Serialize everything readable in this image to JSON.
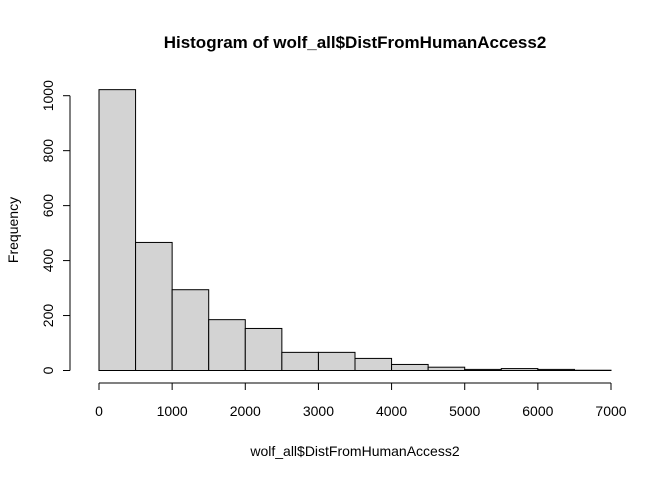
{
  "chart_data": {
    "type": "bar",
    "title": "Histogram of wolf_all$DistFromHumanAccess2",
    "xlabel": "wolf_all$DistFromHumanAccess2",
    "ylabel": "Frequency",
    "bin_width": 500,
    "bins": [
      {
        "start": 0,
        "end": 500,
        "count": 1022
      },
      {
        "start": 500,
        "end": 1000,
        "count": 466
      },
      {
        "start": 1000,
        "end": 1500,
        "count": 294
      },
      {
        "start": 1500,
        "end": 2000,
        "count": 185
      },
      {
        "start": 2000,
        "end": 2500,
        "count": 153
      },
      {
        "start": 2500,
        "end": 3000,
        "count": 66
      },
      {
        "start": 3000,
        "end": 3500,
        "count": 66
      },
      {
        "start": 3500,
        "end": 4000,
        "count": 44
      },
      {
        "start": 4000,
        "end": 4500,
        "count": 22
      },
      {
        "start": 4500,
        "end": 5000,
        "count": 12
      },
      {
        "start": 5000,
        "end": 5500,
        "count": 4
      },
      {
        "start": 5500,
        "end": 6000,
        "count": 7
      },
      {
        "start": 6000,
        "end": 6500,
        "count": 4
      },
      {
        "start": 6500,
        "end": 7000,
        "count": 1
      }
    ],
    "xlim": [
      0,
      7000
    ],
    "ylim": [
      0,
      1000
    ],
    "x_ticks": [
      0,
      1000,
      2000,
      3000,
      4000,
      5000,
      6000,
      7000
    ],
    "y_ticks": [
      0,
      200,
      400,
      600,
      800,
      1000
    ],
    "grid": false,
    "bar_fill": "#d3d3d3",
    "bar_stroke": "#000000"
  }
}
